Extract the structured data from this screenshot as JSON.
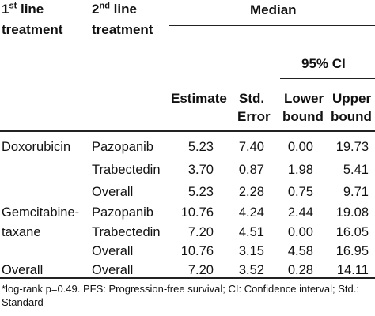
{
  "header": {
    "first_line": {
      "ordinal": "1",
      "suffix": "st",
      "rest": " line",
      "line2": "treatment"
    },
    "second_line": {
      "ordinal": "2",
      "suffix": "nd",
      "rest": " line",
      "line2": "treatment"
    },
    "median": "Median",
    "ci": "95% CI",
    "estimate": "Estimate",
    "std_error_l1": "Std.",
    "std_error_l2": "Error",
    "lower_l1": "Lower",
    "lower_l2": "bound",
    "upper_l1": "Upper",
    "upper_l2": "bound"
  },
  "rows": [
    {
      "first": "Doxorubicin",
      "second": "Pazopanib",
      "estimate": "5.23",
      "stderr": "7.40",
      "lower": "0.00",
      "upper": "19.73"
    },
    {
      "first": "",
      "second": "Trabectedin",
      "estimate": "3.70",
      "stderr": "0.87",
      "lower": "1.98",
      "upper": "5.41"
    },
    {
      "first": "",
      "second": "Overall",
      "estimate": "5.23",
      "stderr": "2.28",
      "lower": "0.75",
      "upper": "9.71"
    },
    {
      "first": "Gemcitabine-",
      "second": "Pazopanib",
      "estimate": "10.76",
      "stderr": "4.24",
      "lower": "2.44",
      "upper": "19.08"
    },
    {
      "first": "taxane",
      "second": "Trabectedin",
      "estimate": "7.20",
      "stderr": "4.51",
      "lower": "0.00",
      "upper": "16.05"
    },
    {
      "first": "",
      "second": "Overall",
      "estimate": "10.76",
      "stderr": "3.15",
      "lower": "4.58",
      "upper": "16.95"
    },
    {
      "first": "Overall",
      "second": "Overall",
      "estimate": "7.20",
      "stderr": "3.52",
      "lower": "0.28",
      "upper": "14.11"
    }
  ],
  "footnote": {
    "line1": "*log-rank p=0.49. PFS: Progression-free survival; CI: Confidence interval; Std.:",
    "line2": "Standard"
  }
}
